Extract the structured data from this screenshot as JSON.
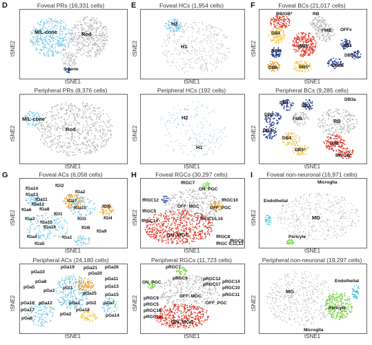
{
  "panels": {
    "D": {
      "letter": "D",
      "top_title": "Foveal PRs (16,331 cells)",
      "bottom_title": "Peripheral PRs (8,376 cells)",
      "top_labels": [
        "M/L-cone",
        "Rod",
        "S-cone"
      ],
      "bottom_labels": [
        "M/L-cone",
        "Rod"
      ]
    },
    "E": {
      "letter": "E",
      "top_title": "Foveal HCs (1,954 cells)",
      "bottom_title": "Peripheral HCs (192 cells)",
      "top_labels": [
        "H2",
        "H1"
      ],
      "bottom_labels": [
        "H2",
        "H1"
      ]
    },
    "F": {
      "letter": "F",
      "top_title": "Foveal BCs (21,017 cells)",
      "bottom_title": "Peripheral BCs (9,285 cells)",
      "top_labels": [
        "BB/GB*",
        "RB",
        "DB4",
        "IMB",
        "FMB",
        "OFFx",
        "DB1",
        "DB2",
        "DB3a",
        "DB6",
        "DB5*",
        "DB3b"
      ],
      "bottom_labels": [
        "DB6",
        "DB1",
        "DB3a",
        "DB2",
        "FMB",
        "RB",
        "DB3b",
        "DB4",
        "IMB",
        "DB5*",
        "BB/GB*"
      ]
    },
    "G": {
      "letter": "G",
      "top_title": "Foveal ACs (6,058 cells)",
      "bottom_title": "Peripheral ACs (24,180 cells)",
      "top_labels": [
        "fGa14",
        "fGl2",
        "fGa2",
        "fGa13",
        "fGa11",
        "fGa12",
        "fGa7",
        "fGa6",
        "fGa8",
        "fGa10",
        "fGl1",
        "fGl5",
        "fGa3",
        "fGa15",
        "fGl4",
        "fGl3",
        "fGa16",
        "fGl6",
        "fGa9",
        "fGa4",
        "fGa1",
        "fGa5"
      ],
      "bottom_labels": [
        "pGa19",
        "pGa21",
        "pGa26",
        "pGa10",
        "pGa20",
        "pGa11",
        "pGa8",
        "pGa13",
        "pGa5",
        "pGa3",
        "pGl1",
        "pGa25",
        "pGa15",
        "pGa12",
        "pGa1",
        "pGl2",
        "pGa2",
        "pGa7",
        "pGa14",
        "pGa16",
        "pGa17",
        "pGa6",
        "pGa18"
      ]
    },
    "H": {
      "letter": "H",
      "top_title": "Foveal RGCs (30,297 cells)",
      "bottom_title": "Peripheral RGCs (11,723 cells)",
      "top_labels": [
        "fRGC7",
        "ON_PGC",
        "fRGC12",
        "OFF_MGC",
        "fRGC10",
        "OFF_PGC",
        "fRGC5",
        "fRGC14",
        "fRGC15,16",
        "ON_MGC",
        "fRGC8",
        "fRGC6",
        "fRGC 9,11,13"
      ],
      "bottom_labels": [
        "pRGC7",
        "ON_PGC",
        "pRGC6",
        "OFF_MGC",
        "pRGC12",
        "pRGC14",
        "pRGC17",
        "pRGC10",
        "pRGC11",
        "OFF_PGC",
        "pRGC9",
        "pRGC5",
        "pRGC16",
        "pRGC18",
        "ON_MGC"
      ]
    },
    "I": {
      "letter": "I",
      "top_title": "Foveal non-neuronal (16,971 cells)",
      "bottom_title": "Peripheral non-neuronal (19,297 cells)",
      "top_labels": [
        "Microglia",
        "Endothelial",
        "MG",
        "Pericyte"
      ],
      "bottom_labels": [
        "MG",
        "Endothelial",
        "Pericyte",
        "Microglia"
      ]
    }
  },
  "axes": {
    "x": "tSNE1",
    "y": "tSNE2"
  },
  "colors": {
    "grey": "#b8b8b8",
    "lightblue": "#7ecbe6",
    "red": "#e53020",
    "orange": "#f0a020",
    "yellow": "#f2c94c",
    "navy": "#1f3a93",
    "green": "#7bd24a",
    "cyan": "#3ec1d8",
    "purple": "#6a3fb0"
  }
}
